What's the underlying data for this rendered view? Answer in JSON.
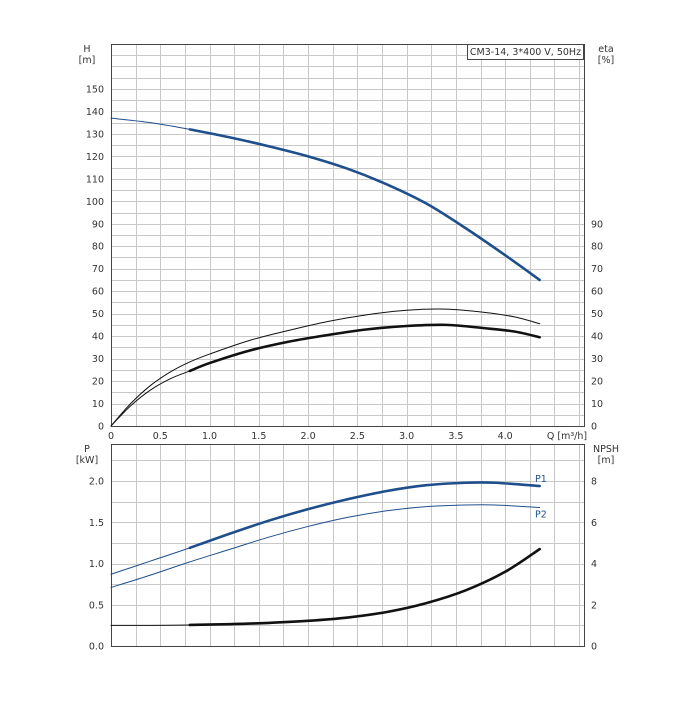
{
  "chart_data": [
    {
      "type": "line",
      "legend_box": "CM3-14, 3*400 V, 50Hz",
      "xlabel": "Q [m³/h]",
      "xlim": [
        0,
        4.8
      ],
      "x_ticks": [
        "0",
        "0.5",
        "1.0",
        "1.5",
        "2.0",
        "2.5",
        "3.0",
        "3.5",
        "4.0"
      ],
      "x_tick_values": [
        0,
        0.5,
        1.0,
        1.5,
        2.0,
        2.5,
        3.0,
        3.5,
        4.0
      ],
      "y_left": {
        "label_line1": "H",
        "label_line2": "[m]",
        "ylim": [
          0,
          170
        ],
        "ticks": [
          "0",
          "10",
          "20",
          "30",
          "40",
          "50",
          "60",
          "70",
          "80",
          "90",
          "100",
          "110",
          "120",
          "130",
          "140",
          "150"
        ],
        "tick_values": [
          0,
          10,
          20,
          30,
          40,
          50,
          60,
          70,
          80,
          90,
          100,
          110,
          120,
          130,
          140,
          150
        ]
      },
      "y_right": {
        "label_line1": "eta",
        "label_line2": "[%]",
        "ylim": [
          0,
          170
        ],
        "ticks": [
          "0",
          "10",
          "20",
          "30",
          "40",
          "50",
          "60",
          "70",
          "80",
          "90"
        ],
        "tick_values": [
          0,
          10,
          20,
          30,
          40,
          50,
          60,
          70,
          80,
          90
        ]
      },
      "grid": true,
      "series": [
        {
          "key": "H",
          "axis": "left",
          "color": "#1f4e8c",
          "x": [
            0,
            0.4,
            0.8,
            1.2,
            1.6,
            2.0,
            2.4,
            2.8,
            3.2,
            3.6,
            4.0,
            4.35
          ],
          "y": [
            137,
            135,
            132,
            128.5,
            124.5,
            120,
            114.5,
            107.5,
            99,
            88,
            76,
            65
          ],
          "thick_from_x": 0.8
        },
        {
          "axis": "right",
          "color": "#111111",
          "x": [
            0,
            0.2,
            0.4,
            0.6,
            0.8,
            1.0,
            1.4,
            1.8,
            2.2,
            2.6,
            3.0,
            3.4,
            3.8,
            4.1,
            4.35
          ],
          "y": [
            0,
            10,
            18,
            24,
            28.5,
            32,
            38,
            42.5,
            46.5,
            49.5,
            51.5,
            52,
            50.5,
            48.5,
            45.5
          ]
        },
        {
          "axis": "right",
          "color": "#111111",
          "x": [
            0,
            0.2,
            0.4,
            0.6,
            0.8,
            1.0,
            1.4,
            1.8,
            2.2,
            2.6,
            3.0,
            3.4,
            3.8,
            4.1,
            4.35
          ],
          "y": [
            0,
            9,
            16,
            21,
            24.5,
            28,
            33.5,
            37.5,
            40.5,
            43,
            44.5,
            45,
            43.5,
            42,
            39.5
          ],
          "thick_from_x": 0.8
        }
      ]
    },
    {
      "type": "line",
      "xlim": [
        0,
        4.8
      ],
      "y_left": {
        "label_line1": "P",
        "label_line2": "[kW]",
        "ylim": [
          0,
          2.45
        ],
        "ticks": [
          "0.0",
          "0.5",
          "1.0",
          "1.5",
          "2.0"
        ],
        "tick_values": [
          0,
          0.5,
          1.0,
          1.5,
          2.0
        ]
      },
      "y_right": {
        "label_line1": "NPSH",
        "label_line2": "[m]",
        "ylim": [
          0,
          9.8
        ],
        "ticks": [
          "0",
          "2",
          "4",
          "6",
          "8"
        ],
        "tick_values": [
          0,
          2,
          4,
          6,
          8
        ]
      },
      "grid": true,
      "series": [
        {
          "name": "P1",
          "axis": "left",
          "color": "#1f4e8c",
          "x": [
            0,
            0.4,
            0.8,
            1.2,
            1.6,
            2.0,
            2.4,
            2.8,
            3.2,
            3.6,
            3.9,
            4.35
          ],
          "y": [
            0.87,
            1.03,
            1.19,
            1.36,
            1.52,
            1.66,
            1.78,
            1.88,
            1.95,
            1.98,
            1.98,
            1.94
          ],
          "thick_from_x": 0.8
        },
        {
          "name": "P2",
          "axis": "left",
          "color": "#1f4e8c",
          "x": [
            0,
            0.4,
            0.8,
            1.2,
            1.6,
            2.0,
            2.4,
            2.8,
            3.2,
            3.6,
            3.9,
            4.35
          ],
          "y": [
            0.71,
            0.86,
            1.02,
            1.17,
            1.32,
            1.45,
            1.56,
            1.64,
            1.69,
            1.71,
            1.71,
            1.68
          ]
        },
        {
          "key": "NPSH",
          "axis": "right",
          "color": "#111111",
          "x": [
            0,
            0.4,
            0.8,
            1.2,
            1.6,
            2.0,
            2.4,
            2.8,
            3.2,
            3.6,
            4.0,
            4.35
          ],
          "y": [
            1.0,
            1.0,
            1.02,
            1.06,
            1.12,
            1.22,
            1.38,
            1.65,
            2.08,
            2.7,
            3.6,
            4.7
          ],
          "thick_from_x": 0.8
        }
      ]
    }
  ]
}
